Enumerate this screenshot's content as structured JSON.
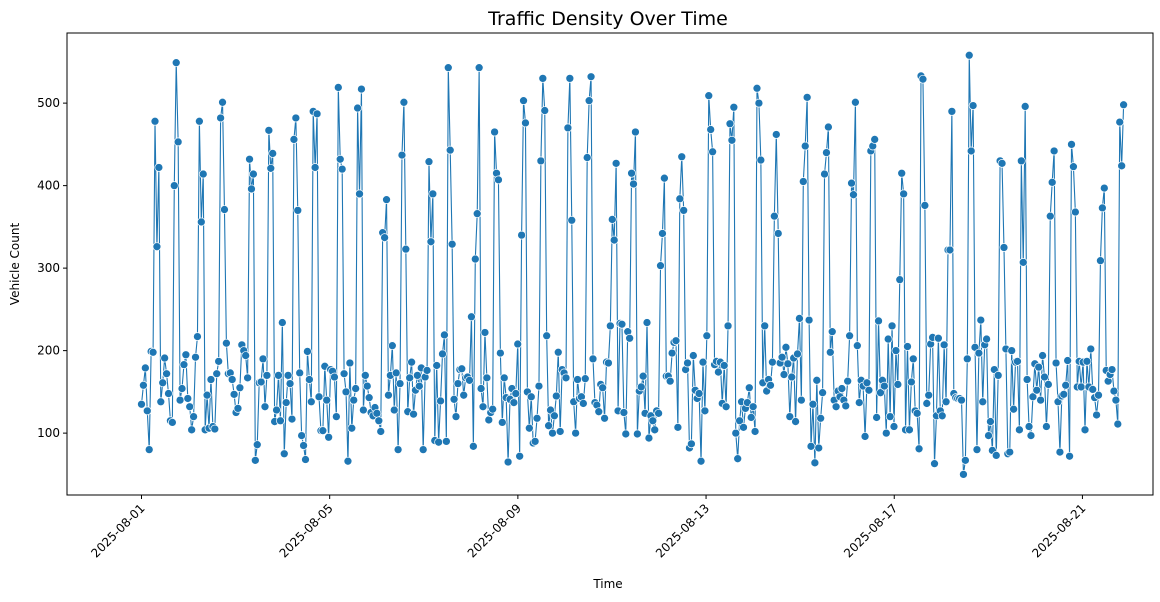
{
  "chart_data": {
    "type": "line",
    "title": "Traffic Density Over Time",
    "xlabel": "Time",
    "ylabel": "Vehicle Count",
    "x_start": "2025-08-01",
    "x_end": "2025-08-21T21:00",
    "xlim": [
      "2025-07-30T10:00",
      "2025-08-22T12:00"
    ],
    "ylim": [
      25,
      585
    ],
    "xticks": [
      "2025-08-01",
      "2025-08-05",
      "2025-08-09",
      "2025-08-13",
      "2025-08-17",
      "2025-08-21"
    ],
    "yticks": [
      100,
      200,
      300,
      400,
      500
    ],
    "grid": false,
    "marker": "circle",
    "series": [
      {
        "color": "#1f77b4",
        "values": [
          135,
          158,
          179,
          127,
          80,
          199,
          198,
          478,
          326,
          422,
          138,
          161,
          191,
          172,
          148,
          115,
          113,
          400,
          549,
          453,
          140,
          154,
          183,
          195,
          142,
          132,
          104,
          120,
          192,
          217,
          478,
          356,
          414,
          104,
          146,
          106,
          165,
          108,
          105,
          172,
          187,
          482,
          501,
          371,
          209,
          172,
          173,
          165,
          147,
          125,
          130,
          155,
          207,
          200,
          194,
          167,
          432,
          396,
          414,
          67,
          86,
          161,
          162,
          190,
          132,
          170,
          467,
          421,
          439,
          114,
          128,
          170,
          115,
          234,
          75,
          137,
          170,
          160,
          117,
          456,
          482,
          370,
          173,
          97,
          85,
          68,
          199,
          165,
          138,
          490,
          422,
          487,
          144,
          103,
          103,
          181,
          140,
          95,
          177,
          175,
          168,
          120,
          519,
          432,
          420,
          172,
          150,
          66,
          185,
          106,
          140,
          154,
          494,
          390,
          517,
          128,
          170,
          157,
          143,
          125,
          121,
          131,
          124,
          115,
          102,
          343,
          337,
          383,
          146,
          170,
          206,
          128,
          173,
          80,
          160,
          437,
          501,
          323,
          126,
          167,
          186,
          123,
          152,
          170,
          157,
          179,
          80,
          168,
          176,
          429,
          332,
          390,
          91,
          182,
          89,
          139,
          196,
          219,
          90,
          543,
          443,
          329,
          141,
          120,
          160,
          177,
          178,
          146,
          167,
          168,
          164,
          241,
          84,
          311,
          366,
          543,
          154,
          132,
          222,
          167,
          116,
          125,
          129,
          465,
          415,
          407,
          197,
          113,
          167,
          143,
          65,
          141,
          154,
          137,
          148,
          208,
          72,
          340,
          503,
          476,
          150,
          106,
          144,
          88,
          90,
          118,
          157,
          430,
          530,
          491,
          218,
          109,
          128,
          100,
          121,
          145,
          198,
          102,
          177,
          173,
          167,
          470,
          530,
          358,
          138,
          100,
          165,
          142,
          144,
          136,
          166,
          434,
          503,
          532,
          190,
          137,
          134,
          126,
          159,
          155,
          118,
          186,
          185,
          230,
          359,
          334,
          427,
          127,
          233,
          232,
          125,
          99,
          223,
          215,
          415,
          402,
          465,
          99,
          151,
          156,
          169,
          124,
          234,
          94,
          121,
          115,
          104,
          127,
          124,
          303,
          342,
          409,
          169,
          169,
          163,
          197,
          210,
          212,
          107,
          384,
          435,
          370,
          177,
          185,
          82,
          87,
          194,
          152,
          142,
          148,
          66,
          186,
          127,
          218,
          509,
          468,
          441,
          183,
          187,
          174,
          186,
          136,
          182,
          132,
          230,
          475,
          455,
          495,
          100,
          69,
          115,
          138,
          107,
          130,
          137,
          155,
          119,
          132,
          102,
          518,
          500,
          431,
          161,
          230,
          151,
          165,
          158,
          186,
          363,
          462,
          342,
          185,
          192,
          171,
          204,
          184,
          120,
          168,
          191,
          114,
          196,
          239,
          140,
          405,
          448,
          507,
          237,
          84,
          135,
          64,
          164,
          82,
          118,
          149,
          414,
          440,
          471,
          198,
          223,
          140,
          132,
          151,
          144,
          154,
          140,
          133,
          163,
          218,
          403,
          389,
          501,
          206,
          137,
          164,
          157,
          96,
          161,
          152,
          442,
          448,
          456,
          119,
          236,
          149,
          164,
          157,
          100,
          214,
          120,
          230,
          108,
          200,
          159,
          286,
          415,
          390,
          104,
          205,
          104,
          162,
          190,
          127,
          124,
          81,
          533,
          529,
          376,
          136,
          146,
          208,
          216,
          63,
          121,
          215,
          127,
          121,
          207,
          138,
          322,
          322,
          490,
          148,
          143,
          142,
          142,
          140,
          50,
          67,
          190,
          558,
          442,
          497,
          204,
          80,
          197,
          237,
          138,
          207,
          214,
          97,
          114,
          79,
          177,
          73,
          170,
          430,
          427,
          325,
          202,
          75,
          77,
          200,
          129,
          186,
          187,
          104,
          430,
          307,
          496,
          165,
          108,
          97,
          144,
          184,
          152,
          180,
          140,
          194,
          168,
          108,
          159,
          363,
          404,
          442,
          185,
          138,
          77,
          145,
          147,
          158,
          188,
          72,
          450,
          423,
          368,
          156,
          187,
          156,
          186,
          104,
          187,
          156,
          202,
          153,
          143,
          122,
          146,
          309,
          373,
          397,
          176,
          163,
          171,
          177,
          151,
          140,
          111,
          477,
          424,
          498
        ]
      }
    ]
  }
}
